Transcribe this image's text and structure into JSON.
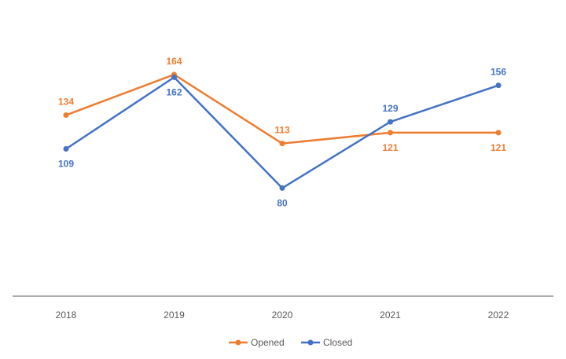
{
  "chart_data": {
    "type": "line",
    "title": "",
    "xlabel": "",
    "ylabel": "",
    "categories": [
      "2018",
      "2019",
      "2020",
      "2021",
      "2022"
    ],
    "series": [
      {
        "name": "Opened",
        "values": [
          134,
          164,
          113,
          121,
          121
        ],
        "color": "#ED7D31"
      },
      {
        "name": "Closed",
        "values": [
          109,
          162,
          80,
          129,
          156
        ],
        "color": "#4472C4"
      }
    ],
    "ylim": [
      0,
      180
    ],
    "grid": false,
    "legend": "bottom"
  }
}
